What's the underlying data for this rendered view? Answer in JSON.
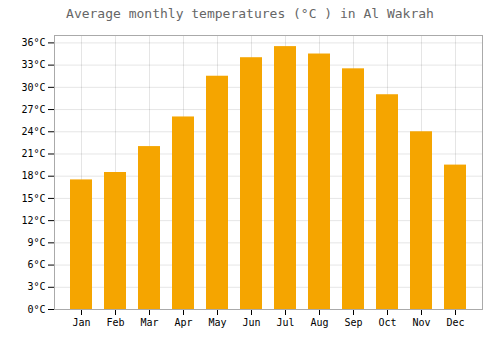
{
  "chart_data": {
    "type": "bar",
    "title": "Average monthly temperatures (°C ) in Al Wakrah",
    "categories": [
      "Jan",
      "Feb",
      "Mar",
      "Apr",
      "May",
      "Jun",
      "Jul",
      "Aug",
      "Sep",
      "Oct",
      "Nov",
      "Dec"
    ],
    "values": [
      17.5,
      18.5,
      22.0,
      26.0,
      31.5,
      34.0,
      35.5,
      34.5,
      32.5,
      29.0,
      24.0,
      19.5
    ],
    "color": "#F5A500",
    "ylim": [
      0,
      37
    ],
    "yticks": [
      {
        "value": 0,
        "label": "0°C"
      },
      {
        "value": 3,
        "label": "3°C"
      },
      {
        "value": 6,
        "label": "6°C"
      },
      {
        "value": 9,
        "label": "9°C"
      },
      {
        "value": 12,
        "label": "12°C"
      },
      {
        "value": 15,
        "label": "15°C"
      },
      {
        "value": 18,
        "label": "18°C"
      },
      {
        "value": 21,
        "label": "21°C"
      },
      {
        "value": 24,
        "label": "24°C"
      },
      {
        "value": 27,
        "label": "27°C"
      },
      {
        "value": 30,
        "label": "30°C"
      },
      {
        "value": 33,
        "label": "33°C"
      },
      {
        "value": 36,
        "label": "36°C"
      }
    ],
    "grid": true
  }
}
